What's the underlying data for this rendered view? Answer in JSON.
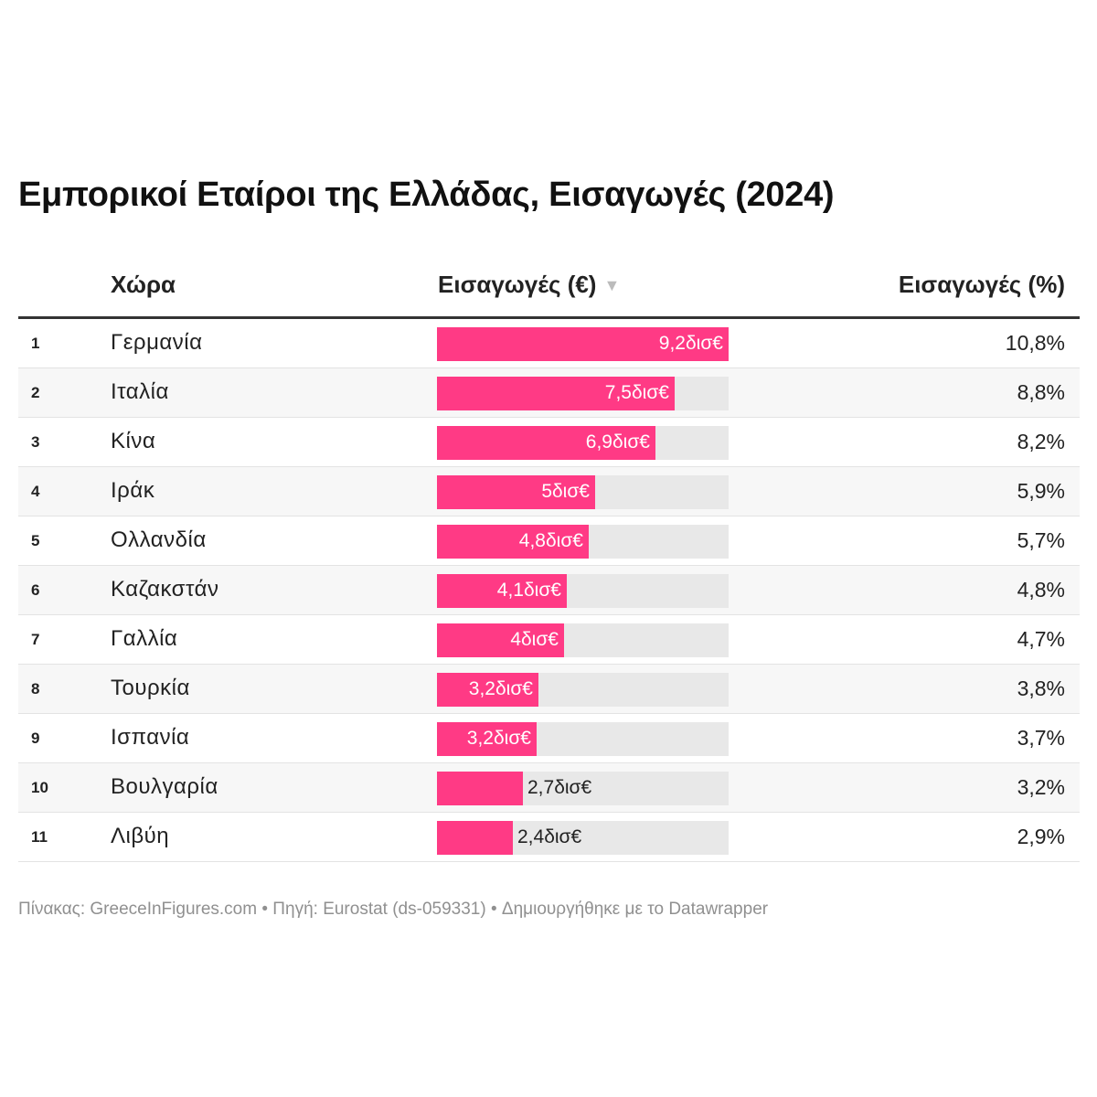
{
  "title": "Εμπορικοί Εταίροι της Ελλάδας, Εισαγωγές (2024)",
  "headers": {
    "country": "Χώρα",
    "value": "Εισαγωγές (€)",
    "sort_icon": "▼",
    "percent": "Εισαγωγές (%)"
  },
  "colors": {
    "bar": "#ff3a85",
    "track": "#e8e8e8"
  },
  "chart_data": {
    "type": "table",
    "title": "Εμπορικοί Εταίροι της Ελλάδας, Εισαγωγές (2024)",
    "columns": [
      "#",
      "Χώρα",
      "Εισαγωγές (€)",
      "Εισαγωγές (%)"
    ],
    "bar_max": 9.2,
    "rows": [
      {
        "rank": "1",
        "country": "Γερμανία",
        "value": 9.2,
        "value_label": "9,2δισ€",
        "percent": "10,8%"
      },
      {
        "rank": "2",
        "country": "Ιταλία",
        "value": 7.5,
        "value_label": "7,5δισ€",
        "percent": "8,8%"
      },
      {
        "rank": "3",
        "country": "Κίνα",
        "value": 6.9,
        "value_label": "6,9δισ€",
        "percent": "8,2%"
      },
      {
        "rank": "4",
        "country": "Ιράκ",
        "value": 5.0,
        "value_label": "5δισ€",
        "percent": "5,9%"
      },
      {
        "rank": "5",
        "country": "Ολλανδία",
        "value": 4.8,
        "value_label": "4,8δισ€",
        "percent": "5,7%"
      },
      {
        "rank": "6",
        "country": "Καζακστάν",
        "value": 4.1,
        "value_label": "4,1δισ€",
        "percent": "4,8%"
      },
      {
        "rank": "7",
        "country": "Γαλλία",
        "value": 4.0,
        "value_label": "4δισ€",
        "percent": "4,7%"
      },
      {
        "rank": "8",
        "country": "Τουρκία",
        "value": 3.2,
        "value_label": "3,2δισ€",
        "percent": "3,8%"
      },
      {
        "rank": "9",
        "country": "Ισπανία",
        "value": 3.15,
        "value_label": "3,2δισ€",
        "percent": "3,7%"
      },
      {
        "rank": "10",
        "country": "Βουλγαρία",
        "value": 2.7,
        "value_label": "2,7δισ€",
        "percent": "3,2%"
      },
      {
        "rank": "11",
        "country": "Λιβύη",
        "value": 2.4,
        "value_label": "2,4δισ€",
        "percent": "2,9%"
      }
    ]
  },
  "footer": "Πίνακας: GreeceInFigures.com • Πηγή: Eurostat (ds-059331) • Δημιουργήθηκε με το Datawrapper"
}
